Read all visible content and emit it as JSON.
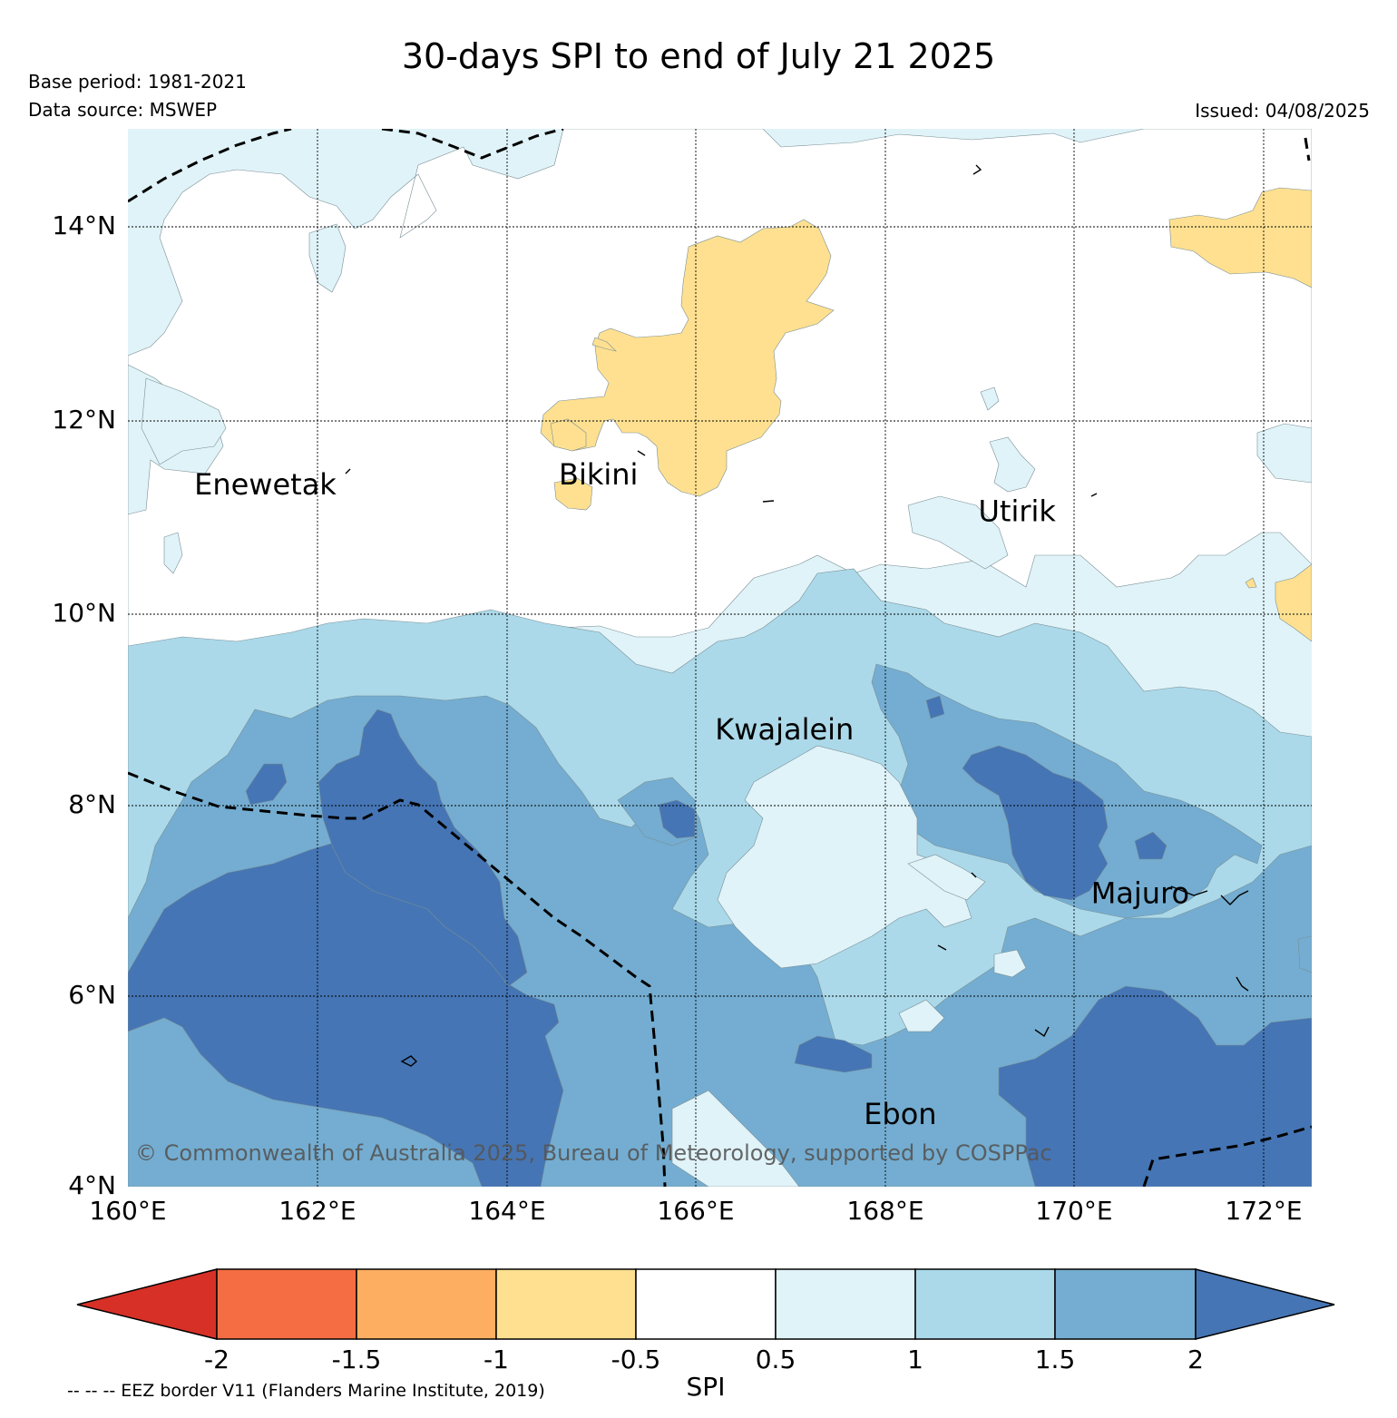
{
  "header": {
    "title": "30-days SPI to end of July 21 2025",
    "base_period": "Base period: 1981-2021",
    "data_source": "Data source: MSWEP",
    "issued": "Issued: 04/08/2025"
  },
  "map": {
    "lat_ticks": [
      "14°N",
      "12°N",
      "10°N",
      "8°N",
      "6°N",
      "4°N"
    ],
    "lon_ticks": [
      "160°E",
      "162°E",
      "164°E",
      "166°E",
      "168°E",
      "170°E",
      "172°E"
    ],
    "lon_range": [
      160,
      172.5
    ],
    "lat_range": [
      4,
      15
    ],
    "places": [
      {
        "name": "Enewetak",
        "lon": 160.7,
        "lat": 11.2
      },
      {
        "name": "Bikini",
        "lon": 164.55,
        "lat": 11.3
      },
      {
        "name": "Kwajalein",
        "lon": 166.2,
        "lat": 8.65
      },
      {
        "name": "Utirik",
        "lon": 168.98,
        "lat": 10.92
      },
      {
        "name": "Majuro",
        "lon": 170.17,
        "lat": 6.95
      },
      {
        "name": "Ebon",
        "lon": 167.77,
        "lat": 4.65
      }
    ],
    "copyright": "© Commonwealth of Australia 2025, Bureau of Meteorology, supported by COSPPac"
  },
  "colorbar": {
    "label": "SPI",
    "ticks": [
      "-2",
      "-1.5",
      "-1",
      "-0.5",
      "0.5",
      "1",
      "1.5",
      "2"
    ],
    "colors": [
      "#d73027",
      "#f46d43",
      "#fdae61",
      "#fee090",
      "#ffffff",
      "#e0f3f8",
      "#abd9e9",
      "#74add1",
      "#4575b4"
    ]
  },
  "footnote": "-- -- -- EEZ border V11 (Flanders Marine Institute, 2019)"
}
